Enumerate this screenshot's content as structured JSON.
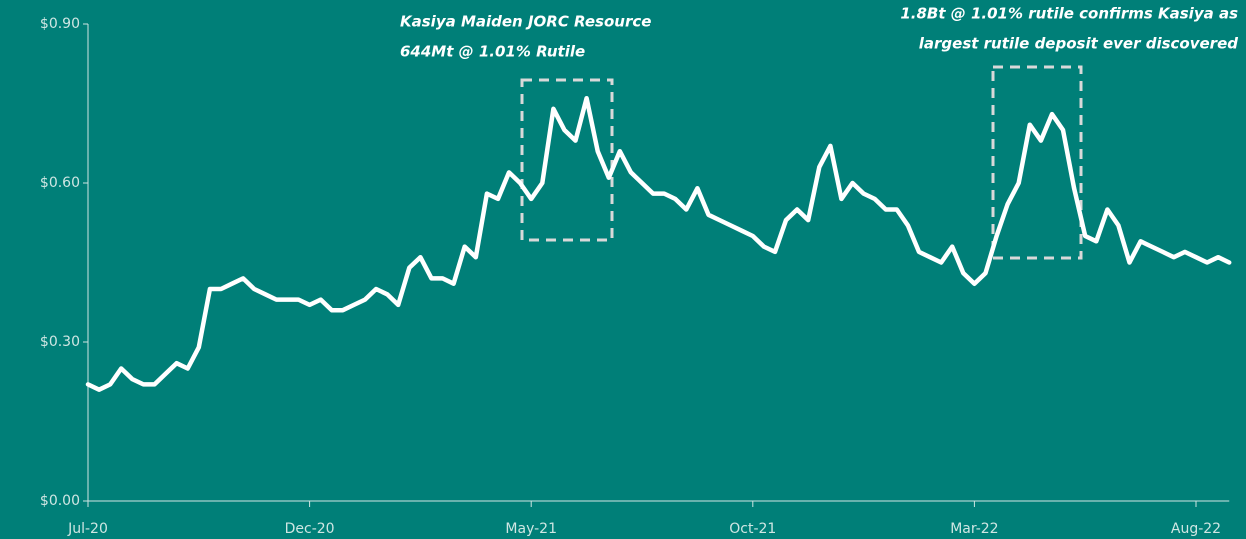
{
  "chart_data": {
    "type": "line",
    "categories": [
      "Jul-20",
      null,
      null,
      null,
      null,
      null,
      null,
      null,
      null,
      null,
      null,
      null,
      null,
      null,
      null,
      null,
      null,
      null,
      null,
      null,
      "Dec-20",
      null,
      null,
      null,
      null,
      null,
      null,
      null,
      null,
      null,
      null,
      null,
      null,
      null,
      null,
      null,
      null,
      null,
      null,
      null,
      "May-21",
      null,
      null,
      null,
      null,
      null,
      null,
      null,
      null,
      null,
      null,
      null,
      null,
      null,
      null,
      null,
      null,
      null,
      null,
      null,
      "Oct-21",
      null,
      null,
      null,
      null,
      null,
      null,
      null,
      null,
      null,
      null,
      null,
      null,
      null,
      null,
      null,
      null,
      null,
      null,
      null,
      "Mar-22",
      null,
      null,
      null,
      null,
      null,
      null,
      null,
      null,
      null,
      null,
      null,
      null,
      null,
      null,
      null,
      null,
      null,
      null,
      null,
      "Aug-22",
      null,
      null,
      null
    ],
    "series": [
      {
        "color": "#ffffff",
        "values": [
          0.22,
          0.21,
          0.22,
          0.25,
          0.23,
          0.22,
          0.22,
          0.24,
          0.26,
          0.25,
          0.29,
          0.4,
          0.4,
          0.41,
          0.42,
          0.4,
          0.39,
          0.38,
          0.38,
          0.38,
          0.37,
          0.38,
          0.36,
          0.36,
          0.37,
          0.38,
          0.4,
          0.39,
          0.37,
          0.44,
          0.46,
          0.42,
          0.42,
          0.41,
          0.48,
          0.46,
          0.58,
          0.57,
          0.62,
          0.6,
          0.57,
          0.6,
          0.74,
          0.7,
          0.68,
          0.76,
          0.66,
          0.61,
          0.66,
          0.62,
          0.6,
          0.58,
          0.58,
          0.57,
          0.55,
          0.59,
          0.54,
          0.53,
          0.52,
          0.51,
          0.5,
          0.48,
          0.47,
          0.53,
          0.55,
          0.53,
          0.63,
          0.67,
          0.57,
          0.6,
          0.58,
          0.57,
          0.55,
          0.55,
          0.52,
          0.47,
          0.46,
          0.45,
          0.48,
          0.43,
          0.41,
          0.43,
          0.5,
          0.56,
          0.6,
          0.71,
          0.68,
          0.73,
          0.7,
          0.59,
          0.5,
          0.49,
          0.55,
          0.52,
          0.45,
          0.49,
          0.48,
          0.47,
          0.46,
          0.47,
          0.46,
          0.45,
          0.46,
          0.45
        ]
      }
    ],
    "ylim": [
      0,
      0.9
    ],
    "yticks": [
      {
        "value": 0,
        "label": "$0.00"
      },
      {
        "value": 0.3,
        "label": "$0.30"
      },
      {
        "value": 0.6,
        "label": "$0.60"
      },
      {
        "value": 0.9,
        "label": "$0.90"
      }
    ],
    "annotations": [
      {
        "lines": [
          "Kasiya Maiden JORC Resource",
          "644Mt @ 1.01% Rutile"
        ]
      },
      {
        "lines": [
          "1.8Bt @ 1.01% rutile confirms Kasiya as",
          "largest rutile deposit ever discovered"
        ]
      }
    ]
  }
}
